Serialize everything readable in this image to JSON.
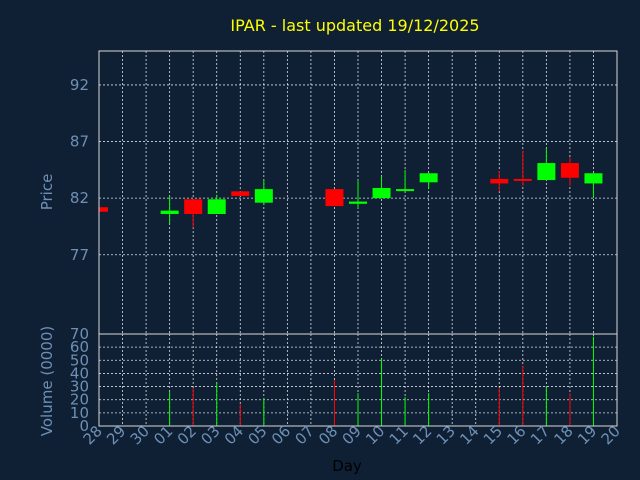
{
  "chart_data": {
    "type": "candlestick",
    "title": "IPAR - last updated 19/12/2025",
    "xlabel": "Day",
    "price_panel": {
      "ylabel": "Price",
      "ylim": [
        70,
        95
      ],
      "yticks": [
        "77",
        "82",
        "87",
        "92"
      ],
      "grid": true
    },
    "volume_panel": {
      "ylabel": "Volume (0000)",
      "ylim": [
        0,
        70
      ],
      "yticks": [
        "0",
        "10",
        "20",
        "30",
        "40",
        "50",
        "60",
        "70"
      ],
      "grid": true
    },
    "categories": [
      "28",
      "29",
      "30",
      "01",
      "02",
      "03",
      "04",
      "05",
      "06",
      "07",
      "08",
      "09",
      "10",
      "11",
      "12",
      "13",
      "14",
      "15",
      "16",
      "17",
      "18",
      "19",
      "20"
    ],
    "colors": {
      "up": "#00ff00",
      "down": "#ff0000",
      "background": "#0f2035"
    },
    "candles": [
      {
        "day": "28",
        "open": 81.2,
        "close": 80.8,
        "high": 81.2,
        "low": 80.8,
        "volume": 0
      },
      {
        "day": "01",
        "open": 80.6,
        "close": 80.9,
        "high": 82.2,
        "low": 79.8,
        "volume": 26
      },
      {
        "day": "02",
        "open": 81.9,
        "close": 80.6,
        "high": 81.9,
        "low": 79.4,
        "volume": 29
      },
      {
        "day": "03",
        "open": 80.6,
        "close": 81.9,
        "high": 82.3,
        "low": 80.6,
        "volume": 33
      },
      {
        "day": "04",
        "open": 82.6,
        "close": 82.2,
        "high": 82.6,
        "low": 82.2,
        "volume": 17
      },
      {
        "day": "05",
        "open": 81.6,
        "close": 82.8,
        "high": 83.6,
        "low": 81.4,
        "volume": 21
      },
      {
        "day": "08",
        "open": 82.8,
        "close": 81.3,
        "high": 82.8,
        "low": 81.3,
        "volume": 35
      },
      {
        "day": "09",
        "open": 81.5,
        "close": 81.7,
        "high": 83.6,
        "low": 81.1,
        "volume": 25
      },
      {
        "day": "10",
        "open": 82.0,
        "close": 82.9,
        "high": 83.9,
        "low": 82.0,
        "volume": 51
      },
      {
        "day": "11",
        "open": 82.7,
        "close": 82.8,
        "high": 84.5,
        "low": 82.7,
        "volume": 22
      },
      {
        "day": "12",
        "open": 83.4,
        "close": 84.2,
        "high": 84.2,
        "low": 82.8,
        "volume": 25
      },
      {
        "day": "15",
        "open": 83.7,
        "close": 83.3,
        "high": 84.4,
        "low": 82.6,
        "volume": 29
      },
      {
        "day": "16",
        "open": 83.7,
        "close": 83.6,
        "high": 86.2,
        "low": 83.1,
        "volume": 46
      },
      {
        "day": "17",
        "open": 83.6,
        "close": 85.1,
        "high": 86.4,
        "low": 83.6,
        "volume": 30
      },
      {
        "day": "18",
        "open": 85.1,
        "close": 83.8,
        "high": 85.6,
        "low": 83.1,
        "volume": 25
      },
      {
        "day": "19",
        "open": 83.3,
        "close": 84.2,
        "high": 84.2,
        "low": 82.0,
        "volume": 68
      }
    ]
  }
}
